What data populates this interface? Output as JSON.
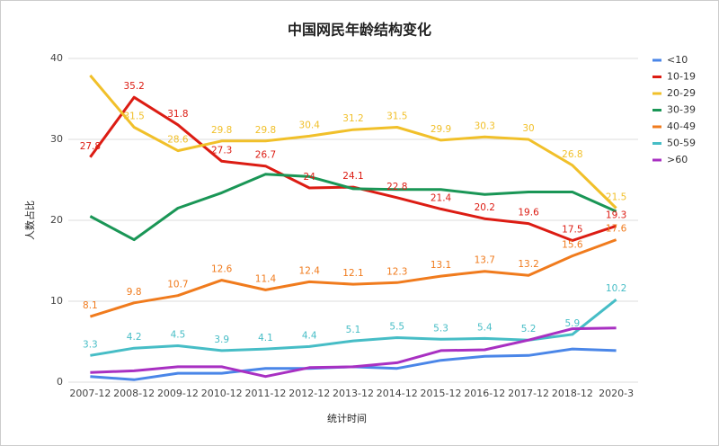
{
  "chart_data": {
    "type": "line",
    "title": "中国网民年龄结构变化",
    "x_label": "统计时间",
    "y_label": "人数占比",
    "categories": [
      "2007-12",
      "2008-12",
      "2009-12",
      "2010-12",
      "2011-12",
      "2012-12",
      "2013-12",
      "2014-12",
      "2015-12",
      "2016-12",
      "2017-12",
      "2018-12",
      "2020-3"
    ],
    "ylim": [
      0,
      40
    ],
    "yticks": [
      0,
      10,
      20,
      30,
      40
    ],
    "grid": true,
    "legend": "right",
    "series": [
      {
        "name": "<10",
        "color": "#4a86e8",
        "values": [
          0.7,
          0.3,
          1.1,
          1.1,
          1.7,
          1.7,
          1.9,
          1.7,
          2.7,
          3.2,
          3.3,
          4.1,
          3.9
        ]
      },
      {
        "name": "10-19",
        "color": "#dc1c13",
        "values": [
          27.8,
          35.2,
          31.8,
          27.3,
          26.7,
          24,
          24.1,
          22.8,
          21.4,
          20.2,
          19.6,
          17.5,
          19.3
        ],
        "value_labels": [
          "27.8",
          "35.2",
          "31.8",
          "27.3",
          "26.7",
          "24",
          "24.1",
          "22.8",
          "21.4",
          "20.2",
          "19.6",
          "17.5",
          "19.3"
        ]
      },
      {
        "name": "20-29",
        "color": "#f1c02a",
        "values": [
          37.9,
          31.5,
          28.6,
          29.8,
          29.8,
          30.4,
          31.2,
          31.5,
          29.9,
          30.3,
          30,
          26.8,
          21.5
        ],
        "value_labels": [
          null,
          "31.5",
          "28.6",
          "29.8",
          "29.8",
          "30.4",
          "31.2",
          "31.5",
          "29.9",
          "30.3",
          "30",
          "26.8",
          "21.5"
        ]
      },
      {
        "name": "30-39",
        "color": "#1a9656",
        "values": [
          20.5,
          17.6,
          21.5,
          23.4,
          25.7,
          25.4,
          23.9,
          23.8,
          23.8,
          23.2,
          23.5,
          23.5,
          21.1
        ]
      },
      {
        "name": "40-49",
        "color": "#f07b1d",
        "values": [
          8.1,
          9.8,
          10.7,
          12.6,
          11.4,
          12.4,
          12.1,
          12.3,
          13.1,
          13.7,
          13.2,
          15.6,
          17.6
        ],
        "value_labels": [
          "8.1",
          "9.8",
          "10.7",
          "12.6",
          "11.4",
          "12.4",
          "12.1",
          "12.3",
          "13.1",
          "13.7",
          "13.2",
          "15.6",
          "17.6"
        ]
      },
      {
        "name": "50-59",
        "color": "#46bdc6",
        "values": [
          3.3,
          4.2,
          4.5,
          3.9,
          4.1,
          4.4,
          5.1,
          5.5,
          5.3,
          5.4,
          5.2,
          5.9,
          10.2
        ],
        "value_labels": [
          "3.3",
          "4.2",
          "4.5",
          "3.9",
          "4.1",
          "4.4",
          "5.1",
          "5.5",
          "5.3",
          "5.4",
          "5.2",
          "5.9",
          "10.2"
        ]
      },
      {
        "name": ">60",
        "color": "#a830c2",
        "values": [
          1.2,
          1.4,
          1.9,
          1.9,
          0.7,
          1.8,
          1.9,
          2.4,
          3.9,
          4.0,
          5.2,
          6.6,
          6.7
        ]
      }
    ]
  }
}
